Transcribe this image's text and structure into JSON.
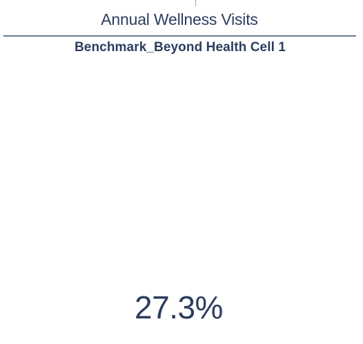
{
  "header": {
    "title": "Annual Wellness Visits",
    "subtitle": "Benchmark_Beyond Health Cell 1"
  },
  "kpi": {
    "value": "27.3%"
  },
  "colors": {
    "text": "#2b3d5e",
    "divider": "#6d7c91",
    "background": "#ffffff"
  }
}
